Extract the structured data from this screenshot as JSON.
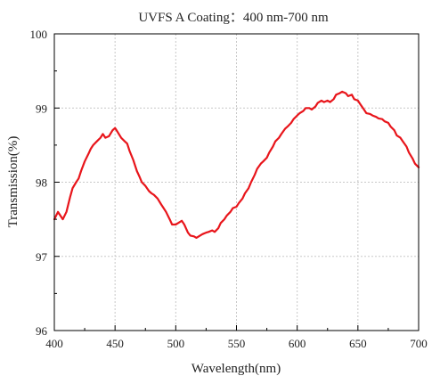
{
  "chart_data": {
    "type": "line",
    "title": "UVFS A Coating：400 nm-700 nm",
    "xlabel": "Wavelength(nm)",
    "ylabel": "Transmission(%)",
    "xlim": [
      400,
      700
    ],
    "ylim": [
      96,
      100
    ],
    "xticks": [
      400,
      450,
      500,
      550,
      600,
      650,
      700
    ],
    "yticks": [
      96,
      97,
      98,
      99,
      100
    ],
    "xtick_labels": [
      "400",
      "450",
      "500",
      "550",
      "600",
      "650",
      "700"
    ],
    "ytick_labels": [
      "96",
      "97",
      "98",
      "99",
      "100"
    ],
    "grid": true,
    "legend": "none",
    "series": [
      {
        "color": "#e8151b",
        "x": [
          400,
          403,
          405,
          407,
          410,
          413,
          415,
          418,
          420,
          422,
          425,
          428,
          430,
          432,
          435,
          438,
          440,
          442,
          445,
          448,
          450,
          452,
          455,
          458,
          460,
          462,
          465,
          468,
          470,
          472,
          475,
          478,
          480,
          482,
          485,
          488,
          490,
          492,
          495,
          497,
          500,
          502,
          505,
          507,
          510,
          512,
          515,
          517,
          520,
          522,
          525,
          527,
          530,
          532,
          535,
          537,
          540,
          542,
          545,
          547,
          550,
          552,
          555,
          557,
          560,
          562,
          565,
          567,
          570,
          572,
          575,
          577,
          580,
          582,
          585,
          587,
          590,
          592,
          595,
          597,
          600,
          602,
          605,
          607,
          610,
          612,
          615,
          617,
          620,
          622,
          625,
          627,
          630,
          632,
          635,
          637,
          640,
          642,
          645,
          647,
          650,
          652,
          655,
          657,
          660,
          662,
          665,
          667,
          670,
          672,
          675,
          677,
          680,
          682,
          685,
          687,
          690,
          692,
          695,
          697,
          700
        ],
        "y": [
          97.5,
          97.6,
          97.55,
          97.5,
          97.6,
          97.8,
          97.92,
          98.0,
          98.05,
          98.15,
          98.28,
          98.38,
          98.45,
          98.5,
          98.55,
          98.6,
          98.65,
          98.6,
          98.62,
          98.7,
          98.73,
          98.68,
          98.6,
          98.55,
          98.52,
          98.42,
          98.3,
          98.15,
          98.08,
          98.0,
          97.95,
          97.88,
          97.85,
          97.83,
          97.78,
          97.7,
          97.65,
          97.6,
          97.5,
          97.43,
          97.43,
          97.45,
          97.48,
          97.43,
          97.32,
          97.28,
          97.27,
          97.25,
          97.28,
          97.3,
          97.32,
          97.33,
          97.35,
          97.33,
          97.38,
          97.45,
          97.5,
          97.55,
          97.6,
          97.65,
          97.67,
          97.72,
          97.78,
          97.85,
          97.92,
          98.0,
          98.1,
          98.18,
          98.25,
          98.28,
          98.33,
          98.4,
          98.48,
          98.55,
          98.6,
          98.65,
          98.72,
          98.75,
          98.8,
          98.85,
          98.9,
          98.93,
          98.96,
          99.0,
          99.0,
          98.98,
          99.02,
          99.07,
          99.1,
          99.08,
          99.1,
          99.08,
          99.12,
          99.18,
          99.2,
          99.22,
          99.2,
          99.16,
          99.18,
          99.12,
          99.1,
          99.05,
          98.98,
          98.93,
          98.92,
          98.9,
          98.88,
          98.86,
          98.85,
          98.82,
          98.8,
          98.75,
          98.7,
          98.63,
          98.6,
          98.55,
          98.48,
          98.4,
          98.32,
          98.25,
          98.2
        ]
      }
    ]
  }
}
